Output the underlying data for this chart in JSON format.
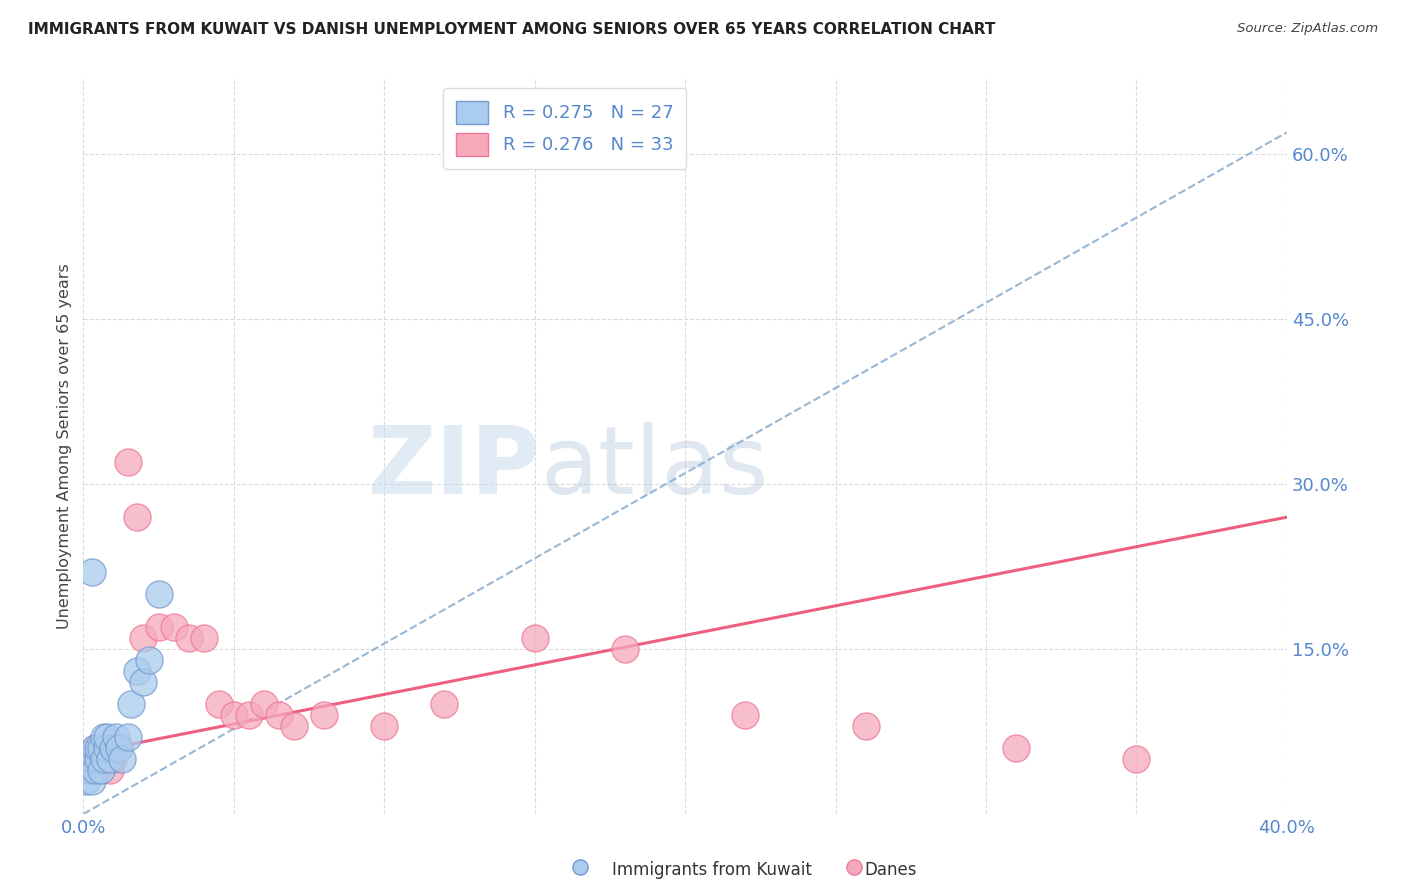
{
  "title": "IMMIGRANTS FROM KUWAIT VS DANISH UNEMPLOYMENT AMONG SENIORS OVER 65 YEARS CORRELATION CHART",
  "source": "Source: ZipAtlas.com",
  "ylabel": "Unemployment Among Seniors over 65 years",
  "xlim": [
    0.0,
    0.4
  ],
  "ylim": [
    0.0,
    0.67
  ],
  "xticks": [
    0.0,
    0.05,
    0.1,
    0.15,
    0.2,
    0.25,
    0.3,
    0.35,
    0.4
  ],
  "yticks_right": [
    0.15,
    0.3,
    0.45,
    0.6
  ],
  "ytick_labels_right": [
    "15.0%",
    "30.0%",
    "45.0%",
    "60.0%"
  ],
  "background_color": "#ffffff",
  "grid_color": "#cccccc",
  "watermark_zip": "ZIP",
  "watermark_atlas": "atlas",
  "legend_r1": "R = 0.275",
  "legend_n1": "N = 27",
  "legend_r2": "R = 0.276",
  "legend_n2": "N = 33",
  "blue_fill": "#aaccee",
  "blue_edge": "#7799cc",
  "pink_fill": "#f5aabc",
  "pink_edge": "#ee7799",
  "trend_blue_color": "#88aacc",
  "trend_pink_color": "#ee5577",
  "blue_trend_x0": 0.0,
  "blue_trend_y0": 0.0,
  "blue_trend_x1": 0.4,
  "blue_trend_y1": 0.62,
  "pink_trend_x0": 0.0,
  "pink_trend_y0": 0.055,
  "pink_trend_x1": 0.4,
  "pink_trend_y1": 0.27,
  "kuwait_x": [
    0.001,
    0.002,
    0.002,
    0.003,
    0.003,
    0.004,
    0.004,
    0.005,
    0.005,
    0.006,
    0.006,
    0.007,
    0.007,
    0.008,
    0.008,
    0.009,
    0.01,
    0.011,
    0.012,
    0.013,
    0.015,
    0.016,
    0.018,
    0.02,
    0.022,
    0.025,
    0.003
  ],
  "kuwait_y": [
    0.03,
    0.04,
    0.05,
    0.03,
    0.05,
    0.04,
    0.06,
    0.05,
    0.06,
    0.04,
    0.06,
    0.05,
    0.07,
    0.06,
    0.07,
    0.05,
    0.06,
    0.07,
    0.06,
    0.05,
    0.07,
    0.1,
    0.13,
    0.12,
    0.14,
    0.2,
    0.22
  ],
  "danes_x": [
    0.001,
    0.002,
    0.003,
    0.004,
    0.005,
    0.006,
    0.007,
    0.008,
    0.009,
    0.01,
    0.012,
    0.015,
    0.018,
    0.02,
    0.025,
    0.03,
    0.035,
    0.04,
    0.045,
    0.05,
    0.055,
    0.06,
    0.065,
    0.07,
    0.08,
    0.1,
    0.12,
    0.15,
    0.18,
    0.22,
    0.26,
    0.31,
    0.35
  ],
  "danes_y": [
    0.04,
    0.05,
    0.04,
    0.06,
    0.05,
    0.04,
    0.05,
    0.06,
    0.04,
    0.05,
    0.06,
    0.32,
    0.27,
    0.16,
    0.17,
    0.17,
    0.16,
    0.16,
    0.1,
    0.09,
    0.09,
    0.1,
    0.09,
    0.08,
    0.09,
    0.08,
    0.1,
    0.16,
    0.15,
    0.09,
    0.08,
    0.06,
    0.05
  ]
}
